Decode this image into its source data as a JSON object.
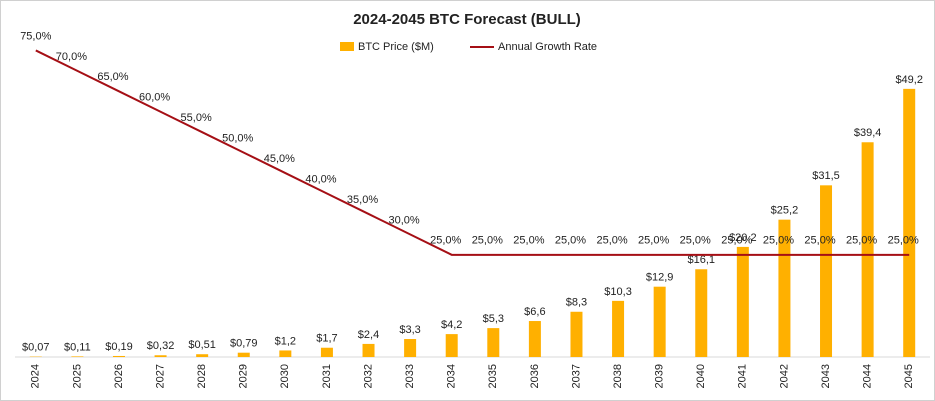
{
  "chart_data": {
    "type": "bar+line",
    "title": "2024-2045  BTC Forecast  (BULL)",
    "categories": [
      "2024",
      "2025",
      "2026",
      "2027",
      "2028",
      "2029",
      "2030",
      "2031",
      "2032",
      "2033",
      "2034",
      "2035",
      "2036",
      "2037",
      "2038",
      "2039",
      "2040",
      "2041",
      "2042",
      "2043",
      "2044",
      "2045"
    ],
    "series": [
      {
        "name": "BTC Price ($M)",
        "type": "bar",
        "color": "#FFB000",
        "values": [
          0.07,
          0.11,
          0.19,
          0.32,
          0.51,
          0.79,
          1.2,
          1.7,
          2.4,
          3.3,
          4.2,
          5.3,
          6.6,
          8.3,
          10.3,
          12.9,
          16.1,
          20.2,
          25.2,
          31.5,
          39.4,
          49.2
        ],
        "value_labels": [
          "$0,07",
          "$0,11",
          "$0,19",
          "$0,32",
          "$0,51",
          "$0,79",
          "$1,2",
          "$1,7",
          "$2,4",
          "$3,3",
          "$4,2",
          "$5,3",
          "$6,6",
          "$8,3",
          "$10,3",
          "$12,9",
          "$16,1",
          "$20,2",
          "$25,2",
          "$31,5",
          "$39,4",
          "$49,2"
        ]
      },
      {
        "name": "Annual Growth Rate",
        "type": "line",
        "axis": "y2",
        "color": "#A50F15",
        "values": [
          75,
          70,
          65,
          60,
          55,
          50,
          45,
          40,
          35,
          30,
          25,
          25,
          25,
          25,
          25,
          25,
          25,
          25,
          25,
          25,
          25,
          25
        ],
        "value_labels": [
          "75,0%",
          "70,0%",
          "65,0%",
          "60,0%",
          "55,0%",
          "50,0%",
          "45,0%",
          "40,0%",
          "35,0%",
          "30,0%",
          "25,0%",
          "25,0%",
          "25,0%",
          "25,0%",
          "25,0%",
          "25,0%",
          "25,0%",
          "25,0%",
          "25,0%",
          "25,0%",
          "25,0%",
          "25,0%"
        ]
      }
    ],
    "ylim": [
      0,
      60
    ],
    "y2lim": [
      0,
      80
    ],
    "legend": "top"
  }
}
